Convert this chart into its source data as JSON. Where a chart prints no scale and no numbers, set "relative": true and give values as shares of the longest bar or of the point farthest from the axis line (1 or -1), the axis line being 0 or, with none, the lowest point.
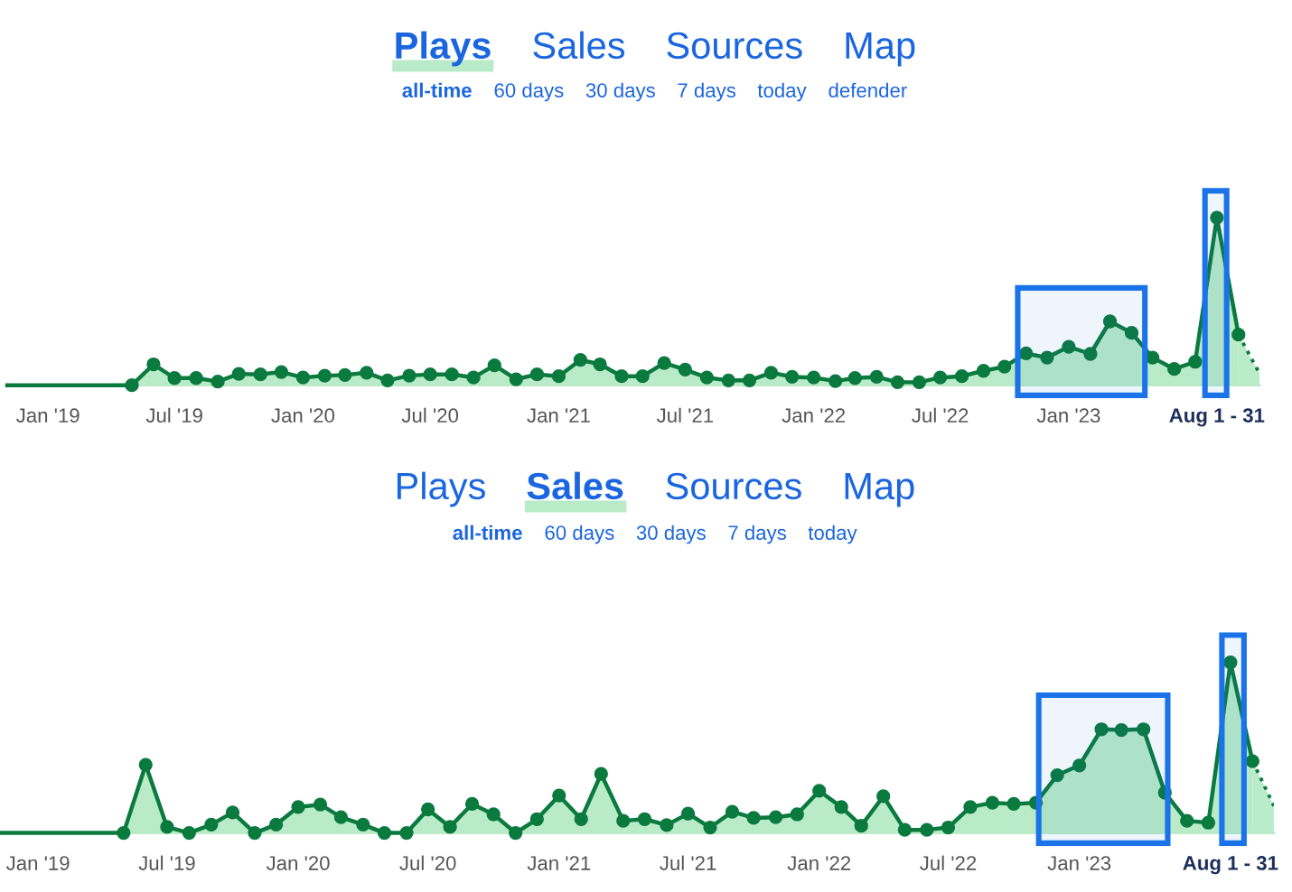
{
  "chart_data": [
    {
      "type": "area",
      "relative": true,
      "annotations": [
        "Plays",
        "Sales",
        "Sources",
        "Map",
        "all-time",
        "60 days",
        "30 days",
        "7 days",
        "today",
        "defender"
      ],
      "xlim": [
        "2018-11",
        "2023-10"
      ],
      "xticks": [
        {
          "value": "2019-01",
          "label": "Jan '19"
        },
        {
          "value": "2019-07",
          "label": "Jul '19"
        },
        {
          "value": "2020-01",
          "label": "Jan '20"
        },
        {
          "value": "2020-07",
          "label": "Jul '20"
        },
        {
          "value": "2021-01",
          "label": "Jan '21"
        },
        {
          "value": "2021-07",
          "label": "Jul '21"
        },
        {
          "value": "2022-01",
          "label": "Jan '22"
        },
        {
          "value": "2022-07",
          "label": "Jul '22"
        },
        {
          "value": "2023-01",
          "label": "Jan '23"
        },
        {
          "value": "2023-08",
          "label": "Aug 1 - 31"
        }
      ],
      "grid": false,
      "legend": false,
      "marker": "circle",
      "bands": [
        {
          "axis": "x",
          "from": "2022-10-20",
          "to": "2023-04-20",
          "color": "#1a73e8"
        },
        {
          "axis": "x",
          "from": "2023-07-15",
          "to": "2023-08-15",
          "color": "#1a73e8"
        }
      ],
      "series": [
        {
          "type": "line",
          "color": "#0a7a3e",
          "marker": "none",
          "x": [
            "2018-11",
            "2019-04-23"
          ],
          "values": [
            0,
            0
          ]
        },
        {
          "color": "#0a7a3e",
          "x": [
            "2019-05",
            "2019-06",
            "2019-07",
            "2019-08",
            "2019-09",
            "2019-10",
            "2019-11",
            "2019-12",
            "2020-01",
            "2020-02",
            "2020-03",
            "2020-04",
            "2020-05",
            "2020-06",
            "2020-07",
            "2020-08",
            "2020-09",
            "2020-10",
            "2020-11",
            "2020-12",
            "2021-01",
            "2021-02",
            "2021-03",
            "2021-04",
            "2021-05",
            "2021-06",
            "2021-07",
            "2021-08",
            "2021-09",
            "2021-10",
            "2021-11",
            "2021-12",
            "2022-01",
            "2022-02",
            "2022-03",
            "2022-04",
            "2022-05",
            "2022-06",
            "2022-07",
            "2022-08",
            "2022-09",
            "2022-10",
            "2022-11",
            "2022-12",
            "2023-01",
            "2023-02",
            "2023-03",
            "2023-04",
            "2023-05",
            "2023-06",
            "2023-07",
            "2023-08",
            "2023-09"
          ],
          "values": [
            0,
            0.125,
            0.043,
            0.043,
            0.022,
            0.068,
            0.065,
            0.079,
            0.046,
            0.057,
            0.061,
            0.075,
            0.029,
            0.057,
            0.065,
            0.065,
            0.046,
            0.119,
            0.036,
            0.065,
            0.054,
            0.151,
            0.125,
            0.054,
            0.054,
            0.133,
            0.093,
            0.046,
            0.029,
            0.029,
            0.075,
            0.05,
            0.046,
            0.025,
            0.043,
            0.05,
            0.018,
            0.018,
            0.046,
            0.054,
            0.086,
            0.111,
            0.19,
            0.165,
            0.23,
            0.187,
            0.381,
            0.313,
            0.165,
            0.097,
            0.14,
            1.0,
            0.302
          ]
        },
        {
          "type": "area",
          "color": "#0a7a3e",
          "marker": "none",
          "line_style": "dotted",
          "x": [
            "2023-09",
            "2023-10"
          ],
          "values": [
            0.302,
            0.071
          ]
        }
      ]
    },
    {
      "type": "area",
      "relative": true,
      "annotations": [
        "Plays",
        "Sales",
        "Sources",
        "Map",
        "all-time",
        "60 days",
        "30 days",
        "7 days",
        "today"
      ],
      "xlim": [
        "2018-11",
        "2023-10"
      ],
      "xticks": [
        {
          "value": "2019-01",
          "label": "Jan '19"
        },
        {
          "value": "2019-07",
          "label": "Jul '19"
        },
        {
          "value": "2020-01",
          "label": "Jan '20"
        },
        {
          "value": "2020-07",
          "label": "Jul '20"
        },
        {
          "value": "2021-01",
          "label": "Jan '21"
        },
        {
          "value": "2021-07",
          "label": "Jul '21"
        },
        {
          "value": "2022-01",
          "label": "Jan '22"
        },
        {
          "value": "2022-07",
          "label": "Jul '22"
        },
        {
          "value": "2023-01",
          "label": "Jan '23"
        },
        {
          "value": "2023-08",
          "label": "Aug 1 - 31"
        }
      ],
      "grid": false,
      "legend": false,
      "marker": "circle",
      "bands": [
        {
          "axis": "x",
          "from": "2022-11-05",
          "to": "2023-05-05",
          "color": "#1a73e8"
        },
        {
          "axis": "x",
          "from": "2023-07-20",
          "to": "2023-08-20",
          "color": "#1a73e8"
        }
      ],
      "series": [
        {
          "type": "line",
          "color": "#0a7a3e",
          "marker": "none",
          "x": [
            "2018-11",
            "2019-04-23"
          ],
          "values": [
            0,
            0
          ]
        },
        {
          "color": "#0a7a3e",
          "x": [
            "2019-05",
            "2019-06",
            "2019-07",
            "2019-08",
            "2019-09",
            "2019-10",
            "2019-11",
            "2019-12",
            "2020-01",
            "2020-02",
            "2020-03",
            "2020-04",
            "2020-05",
            "2020-06",
            "2020-07",
            "2020-08",
            "2020-09",
            "2020-10",
            "2020-11",
            "2020-12",
            "2021-01",
            "2021-02",
            "2021-03",
            "2021-04",
            "2021-05",
            "2021-06",
            "2021-07",
            "2021-08",
            "2021-09",
            "2021-10",
            "2021-11",
            "2021-12",
            "2022-01",
            "2022-02",
            "2022-03",
            "2022-04",
            "2022-05",
            "2022-06",
            "2022-07",
            "2022-08",
            "2022-09",
            "2022-10",
            "2022-11",
            "2022-12",
            "2023-01",
            "2023-02",
            "2023-03",
            "2023-04",
            "2023-05",
            "2023-06",
            "2023-07",
            "2023-08",
            "2023-09"
          ],
          "values": [
            0,
            0.4,
            0.035,
            0,
            0.049,
            0.12,
            0,
            0.049,
            0.152,
            0.166,
            0.092,
            0.049,
            0,
            0,
            0.138,
            0.035,
            0.17,
            0.109,
            0,
            0.081,
            0.219,
            0.081,
            0.346,
            0.071,
            0.081,
            0.046,
            0.113,
            0.032,
            0.124,
            0.088,
            0.092,
            0.109,
            0.247,
            0.152,
            0.042,
            0.215,
            0.018,
            0.018,
            0.032,
            0.152,
            0.177,
            0.17,
            0.177,
            0.339,
            0.396,
            0.608,
            0.604,
            0.608,
            0.236,
            0.071,
            0.06,
            1.0,
            0.421
          ]
        },
        {
          "type": "area",
          "color": "#0a7a3e",
          "marker": "none",
          "line_style": "dotted",
          "x": [
            "2023-09",
            "2023-10"
          ],
          "values": [
            0.421,
            0.159
          ]
        }
      ]
    }
  ]
}
